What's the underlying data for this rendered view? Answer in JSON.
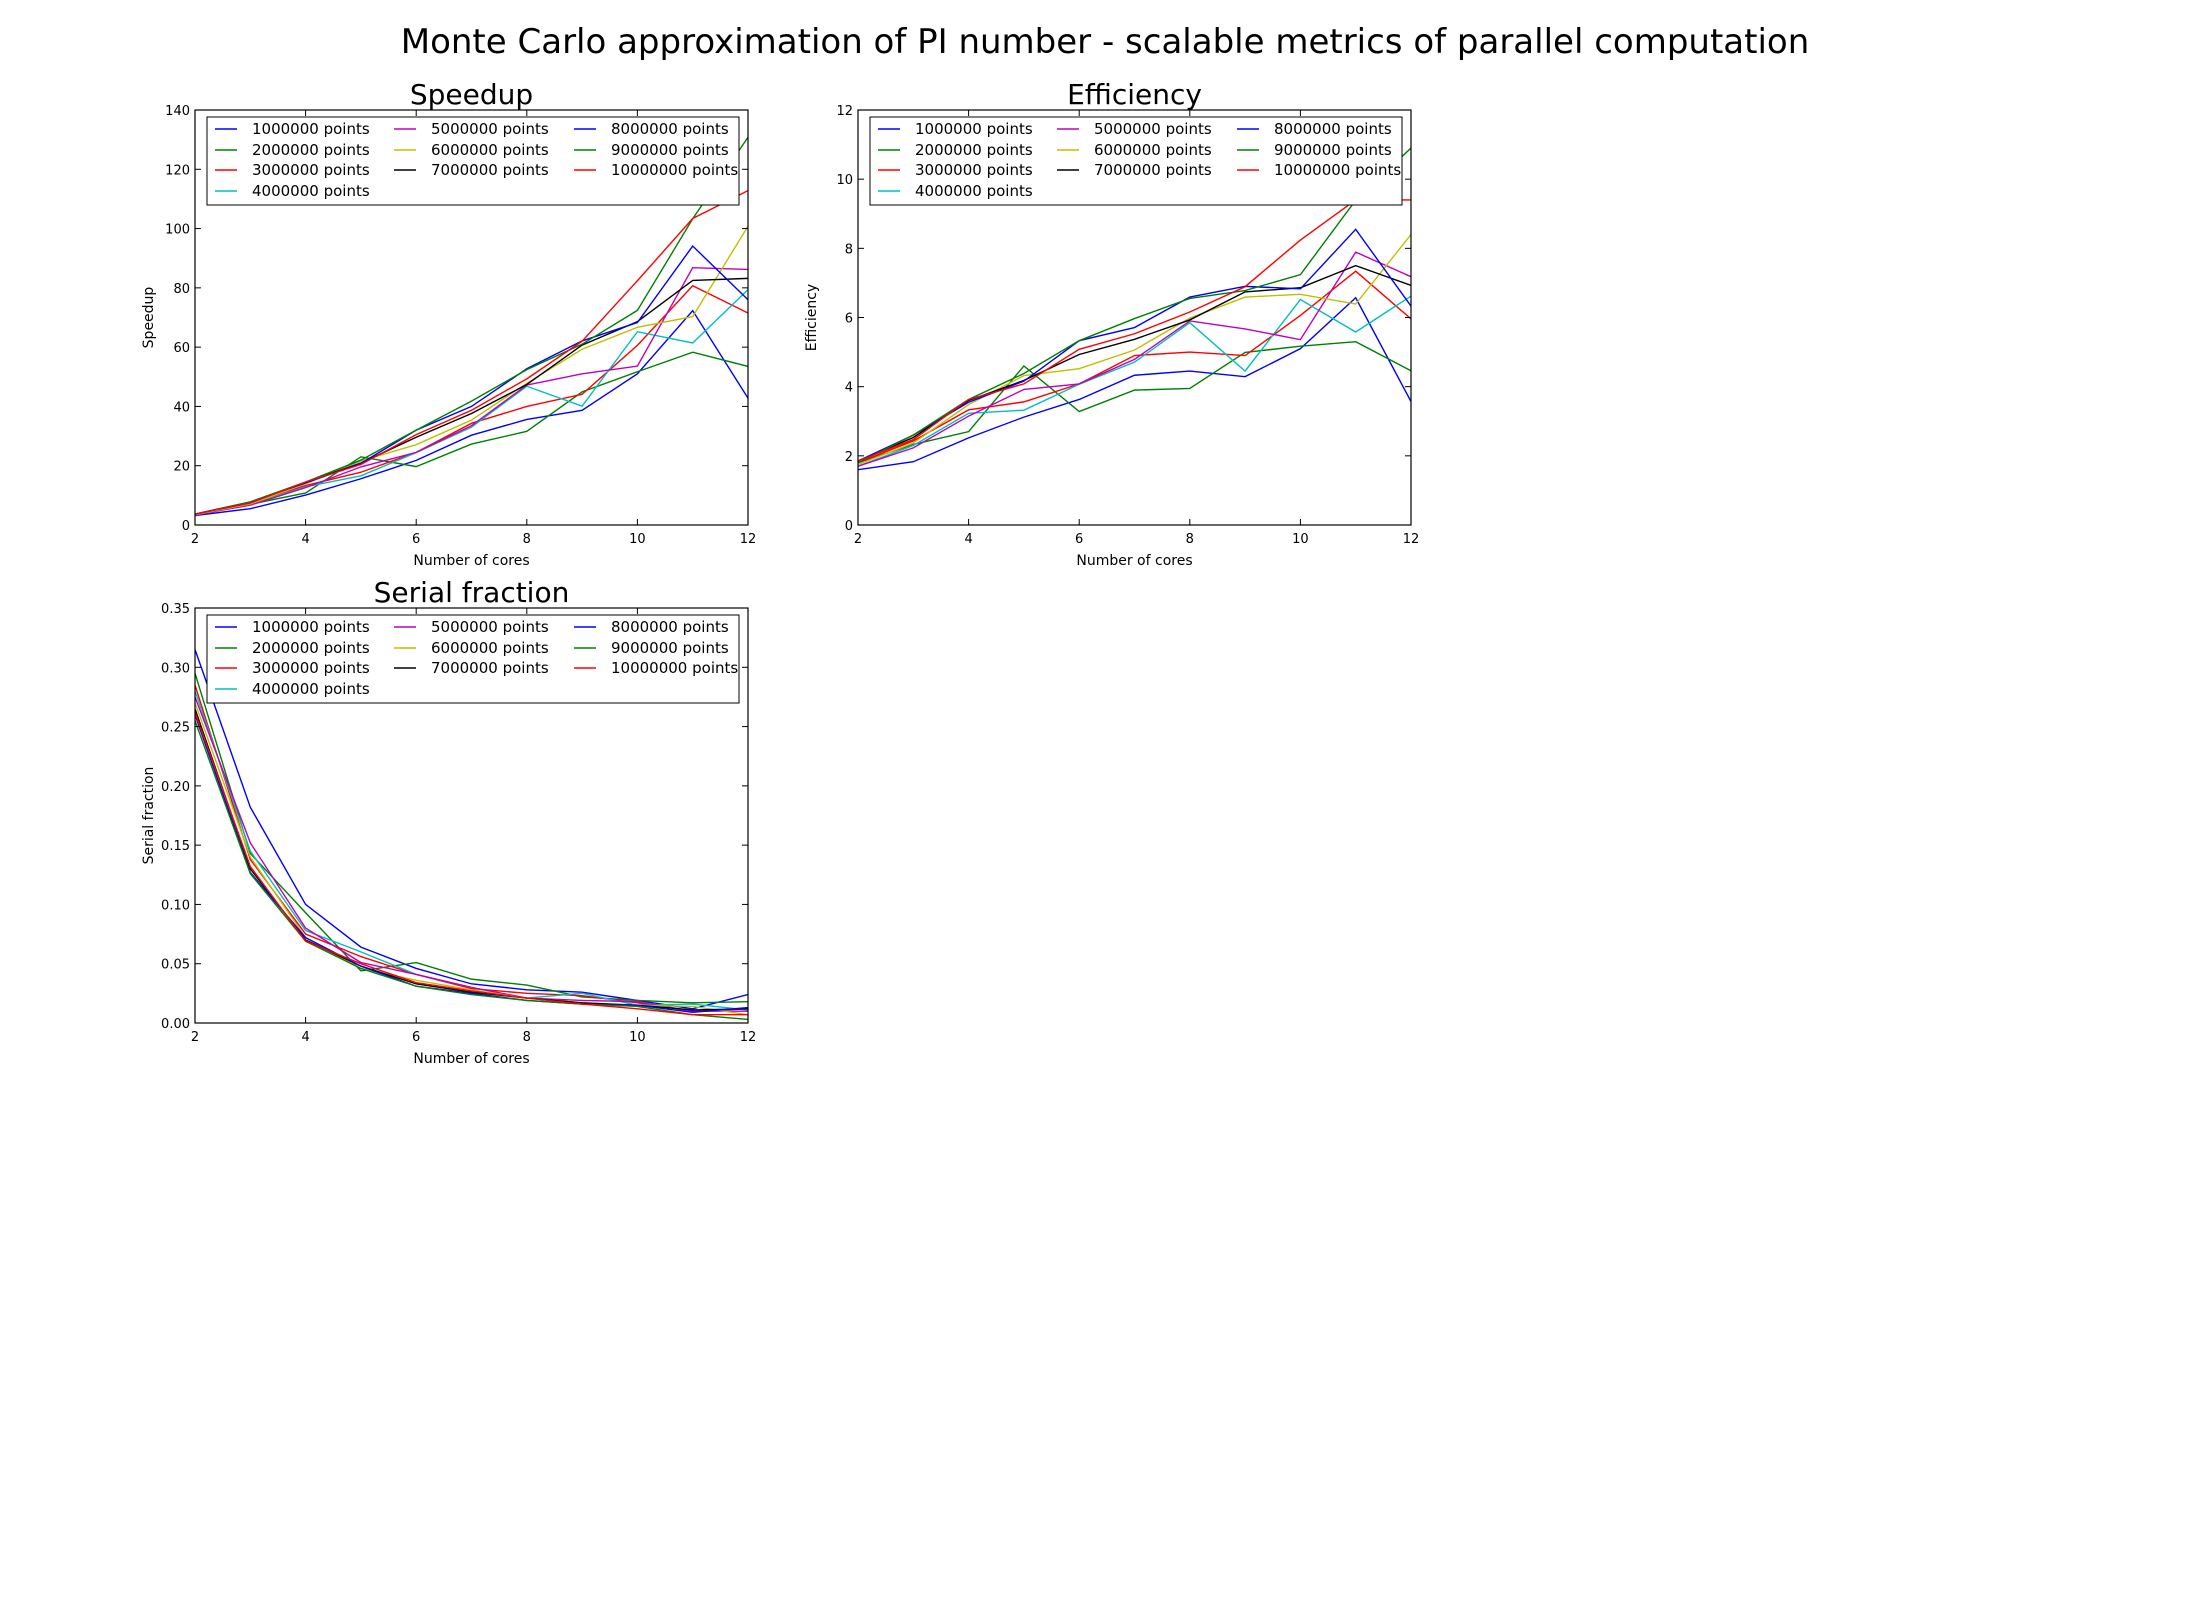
{
  "figure": {
    "title": "Monte Carlo approximation of PI number - scalable metrics of parallel computation"
  },
  "colors": {
    "1000000 points": "#0000ff",
    "2000000 points": "#008000",
    "3000000 points": "#ff0000",
    "4000000 points": "#00bfbf",
    "5000000 points": "#bf00bf",
    "6000000 points": "#bfbf00",
    "7000000 points": "#000000",
    "8000000 points": "#0000ff",
    "9000000 points": "#008000",
    "10000000 points": "#ff0000"
  },
  "chart_data": [
    {
      "id": "speedup",
      "type": "line",
      "title": "Speedup",
      "xlabel": "Number of cores",
      "ylabel": "Speedup",
      "xlim": [
        2,
        12
      ],
      "ylim": [
        0,
        140
      ],
      "xticks": [
        "2",
        "4",
        "6",
        "8",
        "10",
        "12"
      ],
      "yticks": [
        "0",
        "20",
        "40",
        "60",
        "80",
        "100",
        "120",
        "140"
      ],
      "grid": false,
      "legend": "top, 3 columns",
      "x": [
        2,
        3,
        4,
        5,
        6,
        7,
        8,
        9,
        10,
        11,
        12
      ],
      "series": [
        {
          "name": "1000000 points",
          "values": [
            3.2,
            5.5,
            10.1,
            15.6,
            21.8,
            30.3,
            35.6,
            38.7,
            51.0,
            72.3,
            42.8
          ]
        },
        {
          "name": "2000000 points",
          "values": [
            3.6,
            7.0,
            10.8,
            23.0,
            19.7,
            27.3,
            31.6,
            44.9,
            51.7,
            58.3,
            53.5
          ]
        },
        {
          "name": "3000000 points",
          "values": [
            3.6,
            7.3,
            13.3,
            17.8,
            24.5,
            34.3,
            40.0,
            44.1,
            60.6,
            80.7,
            71.5
          ]
        },
        {
          "name": "4000000 points",
          "values": [
            3.4,
            6.9,
            12.9,
            16.6,
            24.4,
            33.0,
            46.8,
            40.1,
            65.2,
            61.4,
            79.4
          ]
        },
        {
          "name": "5000000 points",
          "values": [
            3.4,
            6.7,
            12.6,
            19.6,
            24.5,
            33.5,
            47.2,
            51.0,
            53.6,
            86.8,
            86.2
          ]
        },
        {
          "name": "6000000 points",
          "values": [
            3.5,
            7.1,
            13.9,
            21.6,
            27.1,
            35.4,
            47.8,
            59.3,
            66.7,
            70.3,
            100.8
          ]
        },
        {
          "name": "7000000 points",
          "values": [
            3.7,
            7.6,
            14.4,
            20.9,
            29.6,
            37.6,
            47.4,
            60.7,
            68.6,
            82.5,
            83.2
          ]
        },
        {
          "name": "8000000 points",
          "values": [
            3.7,
            7.8,
            14.2,
            20.8,
            32.0,
            40.0,
            52.7,
            62.1,
            68.3,
            94.1,
            76.0
          ]
        },
        {
          "name": "9000000 points",
          "values": [
            3.6,
            7.8,
            14.5,
            21.9,
            32.0,
            41.8,
            52.4,
            61.0,
            72.4,
            103.3,
            130.8
          ]
        },
        {
          "name": "10000000 points",
          "values": [
            3.7,
            7.4,
            14.5,
            20.4,
            30.5,
            38.7,
            49.3,
            62.0,
            82.4,
            103.4,
            112.8
          ]
        }
      ]
    },
    {
      "id": "efficiency",
      "type": "line",
      "title": "Efficiency",
      "xlabel": "Number of cores",
      "ylabel": "Efficiency",
      "xlim": [
        2,
        12
      ],
      "ylim": [
        0,
        12
      ],
      "xticks": [
        "2",
        "4",
        "6",
        "8",
        "10",
        "12"
      ],
      "yticks": [
        "0",
        "2",
        "4",
        "6",
        "8",
        "10",
        "12"
      ],
      "grid": false,
      "legend": "top, 3 columns",
      "x": [
        2,
        3,
        4,
        5,
        6,
        7,
        8,
        9,
        10,
        11,
        12
      ],
      "series": [
        {
          "name": "1000000 points",
          "values": [
            1.6,
            1.83,
            2.52,
            3.12,
            3.63,
            4.33,
            4.45,
            4.29,
            5.1,
            6.57,
            3.57
          ]
        },
        {
          "name": "2000000 points",
          "values": [
            1.8,
            2.33,
            2.7,
            4.6,
            3.28,
            3.9,
            3.95,
            4.99,
            5.17,
            5.3,
            4.46
          ]
        },
        {
          "name": "3000000 points",
          "values": [
            1.8,
            2.43,
            3.33,
            3.56,
            4.08,
            4.9,
            5.0,
            4.9,
            6.06,
            7.34,
            5.96
          ]
        },
        {
          "name": "4000000 points",
          "values": [
            1.7,
            2.3,
            3.23,
            3.32,
            4.07,
            4.71,
            5.85,
            4.45,
            6.52,
            5.58,
            6.62
          ]
        },
        {
          "name": "5000000 points",
          "values": [
            1.7,
            2.23,
            3.15,
            3.92,
            4.08,
            4.79,
            5.9,
            5.67,
            5.36,
            7.89,
            7.18
          ]
        },
        {
          "name": "6000000 points",
          "values": [
            1.75,
            2.37,
            3.48,
            4.32,
            4.52,
            5.06,
            5.98,
            6.59,
            6.67,
            6.39,
            8.4
          ]
        },
        {
          "name": "7000000 points",
          "values": [
            1.85,
            2.53,
            3.6,
            4.18,
            4.93,
            5.37,
            5.93,
            6.74,
            6.86,
            7.5,
            6.93
          ]
        },
        {
          "name": "8000000 points",
          "values": [
            1.85,
            2.6,
            3.55,
            4.16,
            5.33,
            5.71,
            6.59,
            6.9,
            6.83,
            8.55,
            6.33
          ]
        },
        {
          "name": "9000000 points",
          "values": [
            1.8,
            2.6,
            3.63,
            4.38,
            5.33,
            5.97,
            6.55,
            6.78,
            7.24,
            9.39,
            10.9
          ]
        },
        {
          "name": "10000000 points",
          "values": [
            1.85,
            2.47,
            3.63,
            4.08,
            5.08,
            5.53,
            6.16,
            6.89,
            8.24,
            9.4,
            9.4
          ]
        }
      ]
    },
    {
      "id": "serial",
      "type": "line",
      "title": "Serial fraction",
      "xlabel": "Number of cores",
      "ylabel": "Serial fraction",
      "xlim": [
        2,
        12
      ],
      "ylim": [
        0,
        0.35
      ],
      "xticks": [
        "2",
        "4",
        "6",
        "8",
        "10",
        "12"
      ],
      "yticks": [
        "0.00",
        "0.05",
        "0.10",
        "0.15",
        "0.20",
        "0.25",
        "0.30",
        "0.35"
      ],
      "grid": false,
      "legend": "top, 3 columns",
      "x": [
        2,
        3,
        4,
        5,
        6,
        7,
        8,
        9,
        10,
        11,
        12
      ],
      "series": [
        {
          "name": "1000000 points",
          "values": [
            0.315,
            0.182,
            0.1,
            0.064,
            0.046,
            0.033,
            0.028,
            0.026,
            0.019,
            0.012,
            0.024
          ]
        },
        {
          "name": "2000000 points",
          "values": [
            0.295,
            0.143,
            0.093,
            0.044,
            0.051,
            0.037,
            0.032,
            0.022,
            0.019,
            0.017,
            0.018
          ]
        },
        {
          "name": "3000000 points",
          "values": [
            0.285,
            0.138,
            0.075,
            0.056,
            0.041,
            0.029,
            0.025,
            0.023,
            0.017,
            0.01,
            0.012
          ]
        },
        {
          "name": "4000000 points",
          "values": [
            0.28,
            0.145,
            0.078,
            0.06,
            0.041,
            0.03,
            0.021,
            0.025,
            0.015,
            0.016,
            0.011
          ]
        },
        {
          "name": "5000000 points",
          "values": [
            0.275,
            0.152,
            0.08,
            0.051,
            0.041,
            0.03,
            0.021,
            0.019,
            0.018,
            0.01,
            0.01
          ]
        },
        {
          "name": "6000000 points",
          "values": [
            0.27,
            0.14,
            0.072,
            0.046,
            0.036,
            0.028,
            0.021,
            0.017,
            0.015,
            0.014,
            0.007
          ]
        },
        {
          "name": "7000000 points",
          "values": [
            0.265,
            0.13,
            0.07,
            0.048,
            0.033,
            0.026,
            0.021,
            0.017,
            0.015,
            0.011,
            0.012
          ]
        },
        {
          "name": "8000000 points",
          "values": [
            0.26,
            0.127,
            0.072,
            0.048,
            0.031,
            0.025,
            0.019,
            0.016,
            0.015,
            0.009,
            0.013
          ]
        },
        {
          "name": "9000000 points",
          "values": [
            0.255,
            0.126,
            0.069,
            0.046,
            0.031,
            0.024,
            0.019,
            0.016,
            0.014,
            0.007,
            0.003
          ]
        },
        {
          "name": "10000000 points",
          "values": [
            0.262,
            0.132,
            0.069,
            0.05,
            0.034,
            0.027,
            0.021,
            0.016,
            0.012,
            0.007,
            0.007
          ]
        }
      ]
    }
  ]
}
